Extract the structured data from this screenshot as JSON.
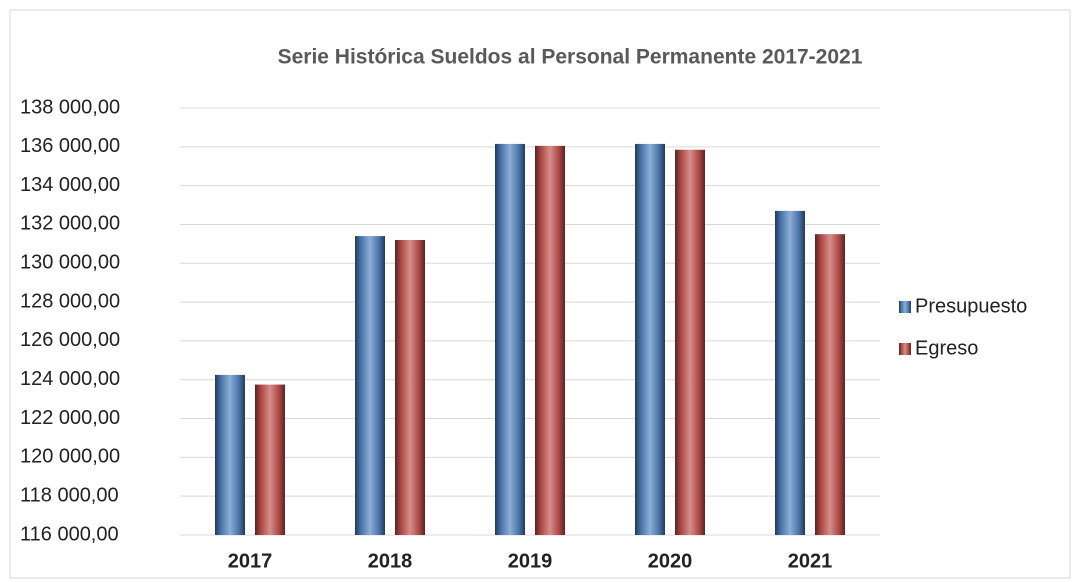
{
  "chart_data": {
    "type": "bar",
    "title": "Serie Histórica Sueldos al Personal Permanente 2017-2021",
    "categories": [
      "2017",
      "2018",
      "2019",
      "2020",
      "2021"
    ],
    "series": [
      {
        "name": "Presupuesto",
        "color": "#4f81bd",
        "values": [
          124250,
          131400,
          136150,
          136150,
          132700
        ]
      },
      {
        "name": "Egreso",
        "color": "#c0504d",
        "values": [
          123750,
          131200,
          136050,
          135850,
          131500
        ]
      }
    ],
    "ylim": [
      116000,
      138000
    ],
    "yticks": [
      {
        "value": 116000,
        "label": "116 000,00"
      },
      {
        "value": 118000,
        "label": "118 000,00"
      },
      {
        "value": 120000,
        "label": "120 000,00"
      },
      {
        "value": 122000,
        "label": "122 000,00"
      },
      {
        "value": 124000,
        "label": "124 000,00"
      },
      {
        "value": 126000,
        "label": "126 000,00"
      },
      {
        "value": 128000,
        "label": "128 000,00"
      },
      {
        "value": 130000,
        "label": "130 000,00"
      },
      {
        "value": 132000,
        "label": "132 000,00"
      },
      {
        "value": 134000,
        "label": "134 000,00"
      },
      {
        "value": 136000,
        "label": "136 000,00"
      },
      {
        "value": 138000,
        "label": "138 000,00"
      }
    ],
    "grid": true,
    "legend": "right"
  }
}
